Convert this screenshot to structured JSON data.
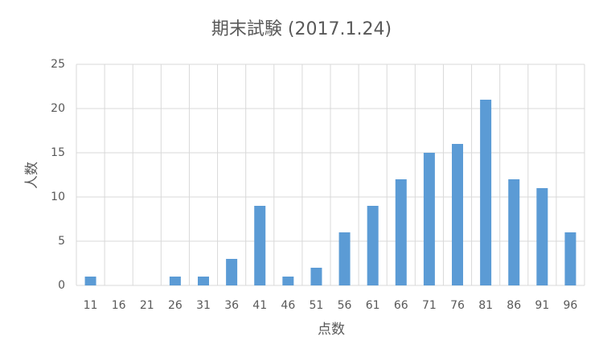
{
  "chart_data": {
    "type": "bar",
    "title": "期末試験 (2017.1.24)",
    "x_label": "点数",
    "y_label": "人数",
    "categories": [
      "11",
      "16",
      "21",
      "26",
      "31",
      "36",
      "41",
      "46",
      "51",
      "56",
      "61",
      "66",
      "71",
      "76",
      "81",
      "86",
      "91",
      "96"
    ],
    "values": [
      1,
      0,
      0,
      1,
      1,
      3,
      9,
      1,
      2,
      6,
      9,
      12,
      15,
      16,
      21,
      12,
      11,
      6
    ],
    "color": "#5b9bd5",
    "ylim": [
      0,
      25
    ],
    "yticks": [
      0,
      5,
      10,
      15,
      20,
      25
    ],
    "grid": true
  }
}
